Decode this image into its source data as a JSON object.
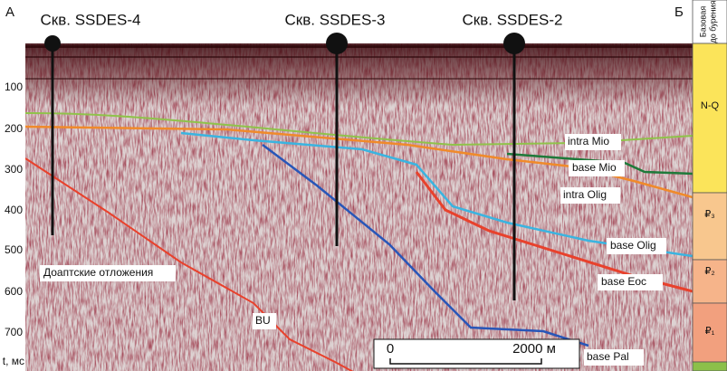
{
  "figure": {
    "corner_left": "А",
    "corner_right": "Б",
    "wells": [
      "Скв. SSDES-4",
      "Скв. SSDES-3",
      "Скв. SSDES-2"
    ],
    "y_axis": {
      "label": "t, мс",
      "ticks": [
        100,
        200,
        300,
        400,
        500,
        600,
        700
      ]
    },
    "horizons": [
      "intra Mio",
      "base Mio",
      "intra Olig",
      "base Olig",
      "base Eoc",
      "base Pal",
      "BU"
    ],
    "section_label": "Доаптские отложения",
    "scale_bar": {
      "start": "0",
      "end": "2000 м"
    },
    "column": {
      "header": [
        "Базовая",
        "до бурения"
      ],
      "units": [
        "N-Q",
        "₽₃",
        "₽₂",
        "₽₁"
      ]
    }
  }
}
